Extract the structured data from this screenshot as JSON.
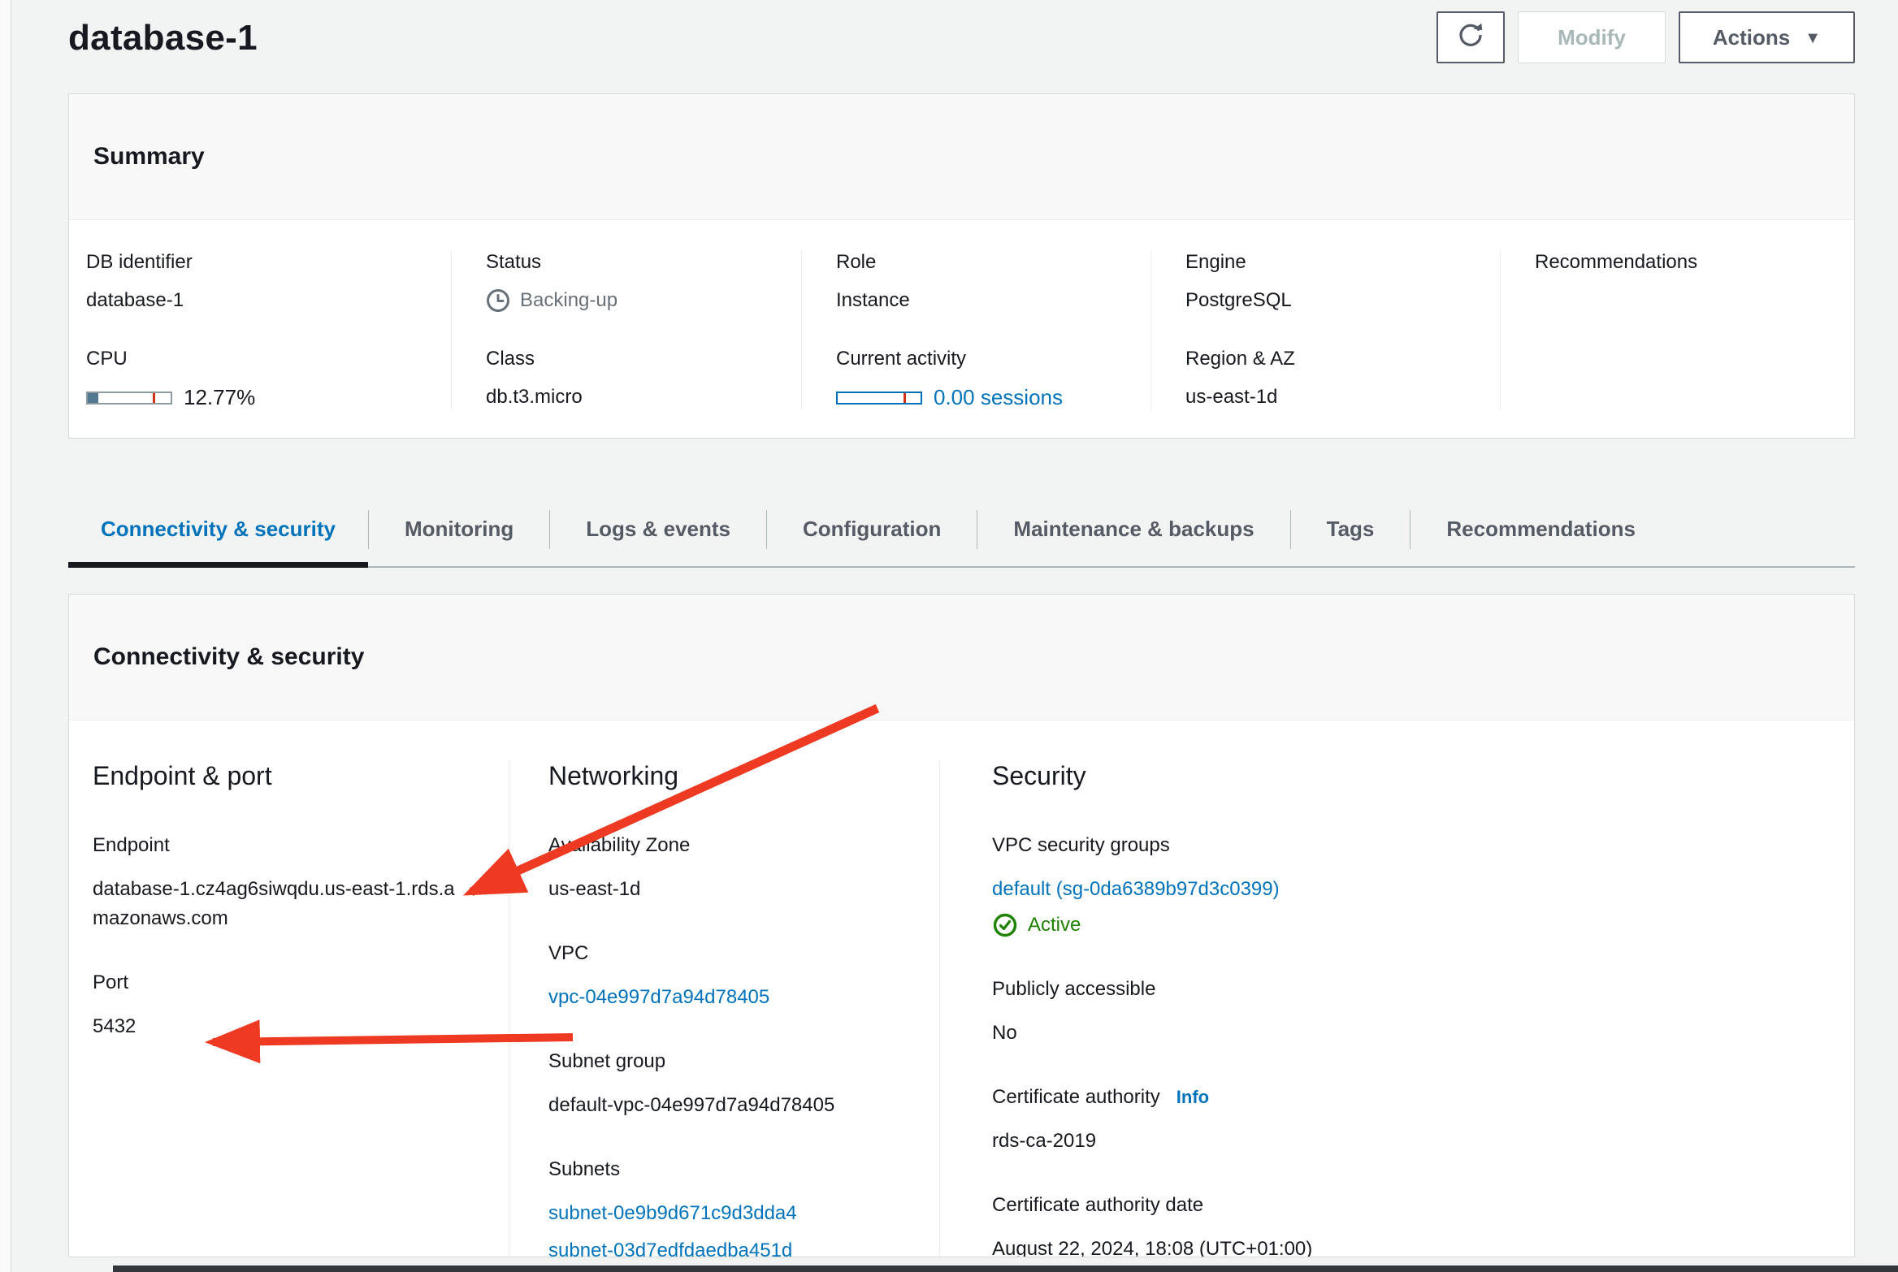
{
  "page": {
    "title": "database-1"
  },
  "header": {
    "refresh_icon": "refresh",
    "modify_label": "Modify",
    "actions_label": "Actions"
  },
  "summary": {
    "title": "Summary",
    "db_identifier": {
      "label": "DB identifier",
      "value": "database-1"
    },
    "cpu": {
      "label": "CPU",
      "percent": 12.77,
      "percent_text": "12.77%",
      "marker_percent": 78
    },
    "status": {
      "label": "Status",
      "value": "Backing-up"
    },
    "class": {
      "label": "Class",
      "value": "db.t3.micro"
    },
    "role": {
      "label": "Role",
      "value": "Instance"
    },
    "current_activity": {
      "label": "Current activity",
      "percent": 0,
      "value": "0.00 sessions",
      "marker_percent": 79
    },
    "engine": {
      "label": "Engine",
      "value": "PostgreSQL"
    },
    "region_az": {
      "label": "Region & AZ",
      "value": "us-east-1d"
    },
    "recommendations": {
      "label": "Recommendations"
    }
  },
  "tabs": [
    {
      "label": "Connectivity & security",
      "active": true
    },
    {
      "label": "Monitoring",
      "active": false
    },
    {
      "label": "Logs & events",
      "active": false
    },
    {
      "label": "Configuration",
      "active": false
    },
    {
      "label": "Maintenance & backups",
      "active": false
    },
    {
      "label": "Tags",
      "active": false
    },
    {
      "label": "Recommendations",
      "active": false
    }
  ],
  "connectivity": {
    "title": "Connectivity & security",
    "endpoint_port": {
      "title": "Endpoint & port",
      "endpoint_label": "Endpoint",
      "endpoint_value": "database-1.cz4ag6siwqdu.us-east-1.rds.amazonaws.com",
      "port_label": "Port",
      "port_value": "5432"
    },
    "networking": {
      "title": "Networking",
      "az_label": "Availability Zone",
      "az_value": "us-east-1d",
      "vpc_label": "VPC",
      "vpc_value": "vpc-04e997d7a94d78405",
      "subnet_group_label": "Subnet group",
      "subnet_group_value": "default-vpc-04e997d7a94d78405",
      "subnets_label": "Subnets",
      "subnets": [
        "subnet-0e9b9d671c9d3dda4",
        "subnet-03d7edfdaedba451d"
      ]
    },
    "security": {
      "title": "Security",
      "sg_label": "VPC security groups",
      "sg_value": "default (sg-0da6389b97d3c0399)",
      "sg_status": "Active",
      "public_label": "Publicly accessible",
      "public_value": "No",
      "ca_label": "Certificate authority",
      "ca_info_label": "Info",
      "ca_value": "rds-ca-2019",
      "ca_date_label": "Certificate authority date",
      "ca_date_value": "August 22, 2024, 18:08 (UTC+01:00)"
    }
  },
  "colors": {
    "link_blue": "#0073bb",
    "active_tab_blue": "#0073bb",
    "tab_underline": "#16191f",
    "status_gray": "#687078",
    "success_green": "#1d8102",
    "meter_fill_blue": "#537892",
    "meter_marker_red": "#d13212",
    "annotation_arrow_red": "#ee3a23",
    "page_background": "#f2f3f3",
    "panel_border": "#d5dbdb"
  }
}
